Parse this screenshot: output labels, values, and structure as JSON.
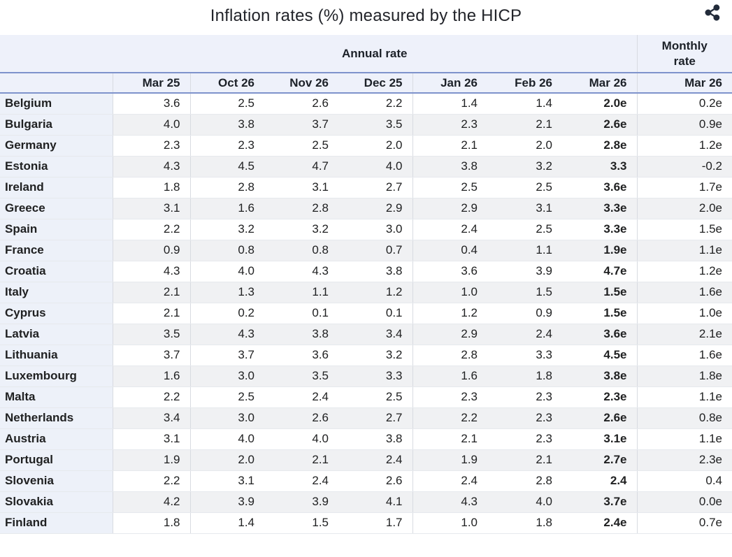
{
  "page": {
    "title": "Inflation rates (%) measured by the HICP",
    "share_button_label": "share"
  },
  "chart_data": {
    "type": "table",
    "title": "Inflation rates (%) measured by the HICP",
    "column_groups": [
      {
        "label": "Annual rate",
        "span": 7
      },
      {
        "label": "Monthly rate",
        "span": 1
      }
    ],
    "columns": [
      "Mar 25",
      "Oct 26",
      "Nov 26",
      "Dec 25",
      "Jan 26",
      "Feb 26",
      "Mar 26"
    ],
    "monthly_column": "Mar 26",
    "rows": [
      {
        "country": "Belgium",
        "annual": [
          "3.6",
          "2.5",
          "2.6",
          "2.2",
          "1.4",
          "1.4",
          "2.0e"
        ],
        "monthly": "0.2e"
      },
      {
        "country": "Bulgaria",
        "annual": [
          "4.0",
          "3.8",
          "3.7",
          "3.5",
          "2.3",
          "2.1",
          "2.6e"
        ],
        "monthly": "0.9e"
      },
      {
        "country": "Germany",
        "annual": [
          "2.3",
          "2.3",
          "2.5",
          "2.0",
          "2.1",
          "2.0",
          "2.8e"
        ],
        "monthly": "1.2e"
      },
      {
        "country": "Estonia",
        "annual": [
          "4.3",
          "4.5",
          "4.7",
          "4.0",
          "3.8",
          "3.2",
          "3.3"
        ],
        "monthly": "-0.2"
      },
      {
        "country": "Ireland",
        "annual": [
          "1.8",
          "2.8",
          "3.1",
          "2.7",
          "2.5",
          "2.5",
          "3.6e"
        ],
        "monthly": "1.7e"
      },
      {
        "country": "Greece",
        "annual": [
          "3.1",
          "1.6",
          "2.8",
          "2.9",
          "2.9",
          "3.1",
          "3.3e"
        ],
        "monthly": "2.0e"
      },
      {
        "country": "Spain",
        "annual": [
          "2.2",
          "3.2",
          "3.2",
          "3.0",
          "2.4",
          "2.5",
          "3.3e"
        ],
        "monthly": "1.5e"
      },
      {
        "country": "France",
        "annual": [
          "0.9",
          "0.8",
          "0.8",
          "0.7",
          "0.4",
          "1.1",
          "1.9e"
        ],
        "monthly": "1.1e"
      },
      {
        "country": "Croatia",
        "annual": [
          "4.3",
          "4.0",
          "4.3",
          "3.8",
          "3.6",
          "3.9",
          "4.7e"
        ],
        "monthly": "1.2e"
      },
      {
        "country": "Italy",
        "annual": [
          "2.1",
          "1.3",
          "1.1",
          "1.2",
          "1.0",
          "1.5",
          "1.5e"
        ],
        "monthly": "1.6e"
      },
      {
        "country": "Cyprus",
        "annual": [
          "2.1",
          "0.2",
          "0.1",
          "0.1",
          "1.2",
          "0.9",
          "1.5e"
        ],
        "monthly": "1.0e"
      },
      {
        "country": "Latvia",
        "annual": [
          "3.5",
          "4.3",
          "3.8",
          "3.4",
          "2.9",
          "2.4",
          "3.6e"
        ],
        "monthly": "2.1e"
      },
      {
        "country": "Lithuania",
        "annual": [
          "3.7",
          "3.7",
          "3.6",
          "3.2",
          "2.8",
          "3.3",
          "4.5e"
        ],
        "monthly": "1.6e"
      },
      {
        "country": "Luxembourg",
        "annual": [
          "1.6",
          "3.0",
          "3.5",
          "3.3",
          "1.6",
          "1.8",
          "3.8e"
        ],
        "monthly": "1.8e"
      },
      {
        "country": "Malta",
        "annual": [
          "2.2",
          "2.5",
          "2.4",
          "2.5",
          "2.3",
          "2.3",
          "2.3e"
        ],
        "monthly": "1.1e"
      },
      {
        "country": "Netherlands",
        "annual": [
          "3.4",
          "3.0",
          "2.6",
          "2.7",
          "2.2",
          "2.3",
          "2.6e"
        ],
        "monthly": "0.8e"
      },
      {
        "country": "Austria",
        "annual": [
          "3.1",
          "4.0",
          "4.0",
          "3.8",
          "2.1",
          "2.3",
          "3.1e"
        ],
        "monthly": "1.1e"
      },
      {
        "country": "Portugal",
        "annual": [
          "1.9",
          "2.0",
          "2.1",
          "2.4",
          "1.9",
          "2.1",
          "2.7e"
        ],
        "monthly": "2.3e"
      },
      {
        "country": "Slovenia",
        "annual": [
          "2.2",
          "3.1",
          "2.4",
          "2.6",
          "2.4",
          "2.8",
          "2.4"
        ],
        "monthly": "0.4"
      },
      {
        "country": "Slovakia",
        "annual": [
          "4.2",
          "3.9",
          "3.9",
          "4.1",
          "4.3",
          "4.0",
          "3.7e"
        ],
        "monthly": "0.0e"
      },
      {
        "country": "Finland",
        "annual": [
          "1.8",
          "1.4",
          "1.5",
          "1.7",
          "1.0",
          "1.8",
          "2.4e"
        ],
        "monthly": "0.7e"
      }
    ]
  },
  "colors": {
    "header_bg": "#eef1fa",
    "accent_rule": "#7e93cc",
    "stripe_bg": "#f0f1f3",
    "country_col_bg": "#edf1f9",
    "separator": "#d8dbe1",
    "row_line": "#e6e9ed",
    "text": "#202122",
    "icon": "#222b3a"
  }
}
